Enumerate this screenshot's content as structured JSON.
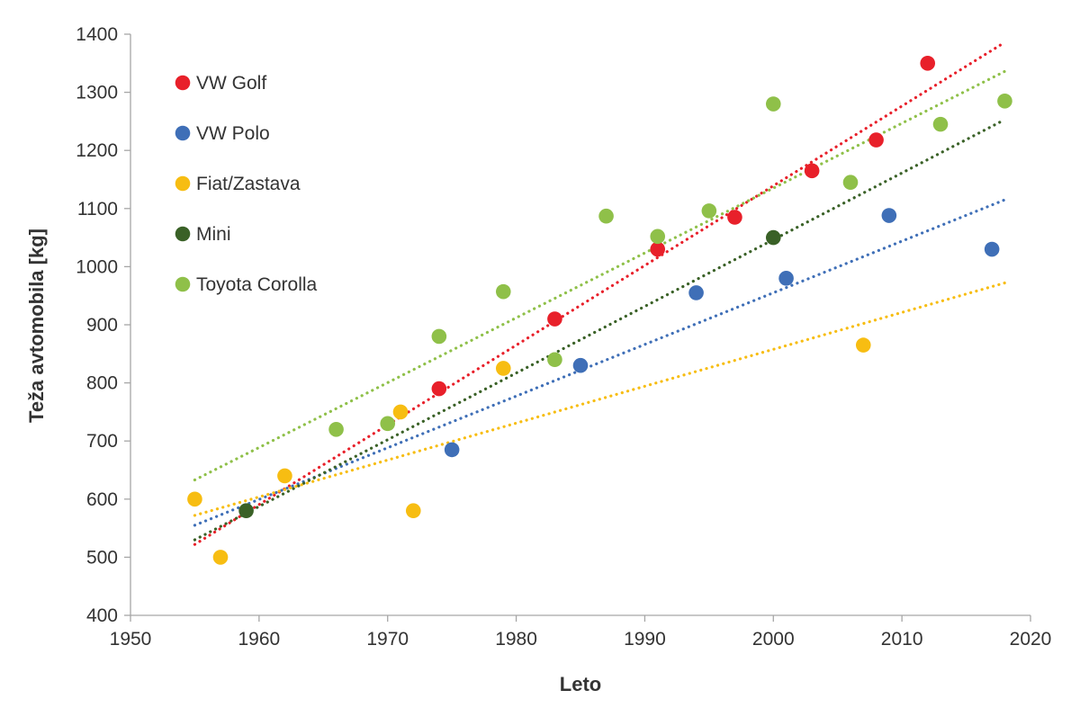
{
  "chart_data": {
    "type": "scatter",
    "xlabel": "Leto",
    "ylabel": "Teža avtomobila [kg]",
    "xlim": [
      1950,
      2020
    ],
    "ylim": [
      400,
      1400
    ],
    "x_ticks": [
      1950,
      1960,
      1970,
      1980,
      1990,
      2000,
      2010,
      2020
    ],
    "y_ticks": [
      400,
      500,
      600,
      700,
      800,
      900,
      1000,
      1100,
      1200,
      1300,
      1400
    ],
    "grid": false,
    "legend_position": "top-left",
    "trendlines": "linear, dotted",
    "series": [
      {
        "name": "VW Golf",
        "color": "#e8202a",
        "points": [
          [
            1974,
            790
          ],
          [
            1983,
            910
          ],
          [
            1991,
            1030
          ],
          [
            1997,
            1085
          ],
          [
            2003,
            1165
          ],
          [
            2008,
            1218
          ],
          [
            2012,
            1350
          ]
        ],
        "trend": [
          [
            1955,
            522
          ],
          [
            2018,
            1386
          ]
        ]
      },
      {
        "name": "VW Polo",
        "color": "#3f6fb7",
        "points": [
          [
            1975,
            685
          ],
          [
            1985,
            830
          ],
          [
            1994,
            955
          ],
          [
            2001,
            980
          ],
          [
            2009,
            1088
          ],
          [
            2017,
            1030
          ]
        ],
        "trend": [
          [
            1955,
            555
          ],
          [
            2018,
            1115
          ]
        ]
      },
      {
        "name": "Fiat/Zastava",
        "color": "#f7bd12",
        "points": [
          [
            1955,
            600
          ],
          [
            1957,
            500
          ],
          [
            1962,
            640
          ],
          [
            1971,
            750
          ],
          [
            1972,
            580
          ],
          [
            1979,
            825
          ],
          [
            2007,
            865
          ]
        ],
        "trend": [
          [
            1955,
            572
          ],
          [
            2018,
            972
          ]
        ]
      },
      {
        "name": "Mini",
        "color": "#3a6127",
        "points": [
          [
            1959,
            580
          ],
          [
            2000,
            1050
          ]
        ],
        "trend": [
          [
            1955,
            530
          ],
          [
            2018,
            1253
          ]
        ]
      },
      {
        "name": "Toyota Corolla",
        "color": "#8fc049",
        "points": [
          [
            1966,
            720
          ],
          [
            1970,
            730
          ],
          [
            1974,
            880
          ],
          [
            1979,
            957
          ],
          [
            1983,
            840
          ],
          [
            1987,
            1087
          ],
          [
            1991,
            1052
          ],
          [
            1995,
            1096
          ],
          [
            2000,
            1280
          ],
          [
            2006,
            1145
          ],
          [
            2013,
            1245
          ],
          [
            2018,
            1285
          ]
        ],
        "trend": [
          [
            1955,
            633
          ],
          [
            2018,
            1336
          ]
        ]
      }
    ]
  }
}
